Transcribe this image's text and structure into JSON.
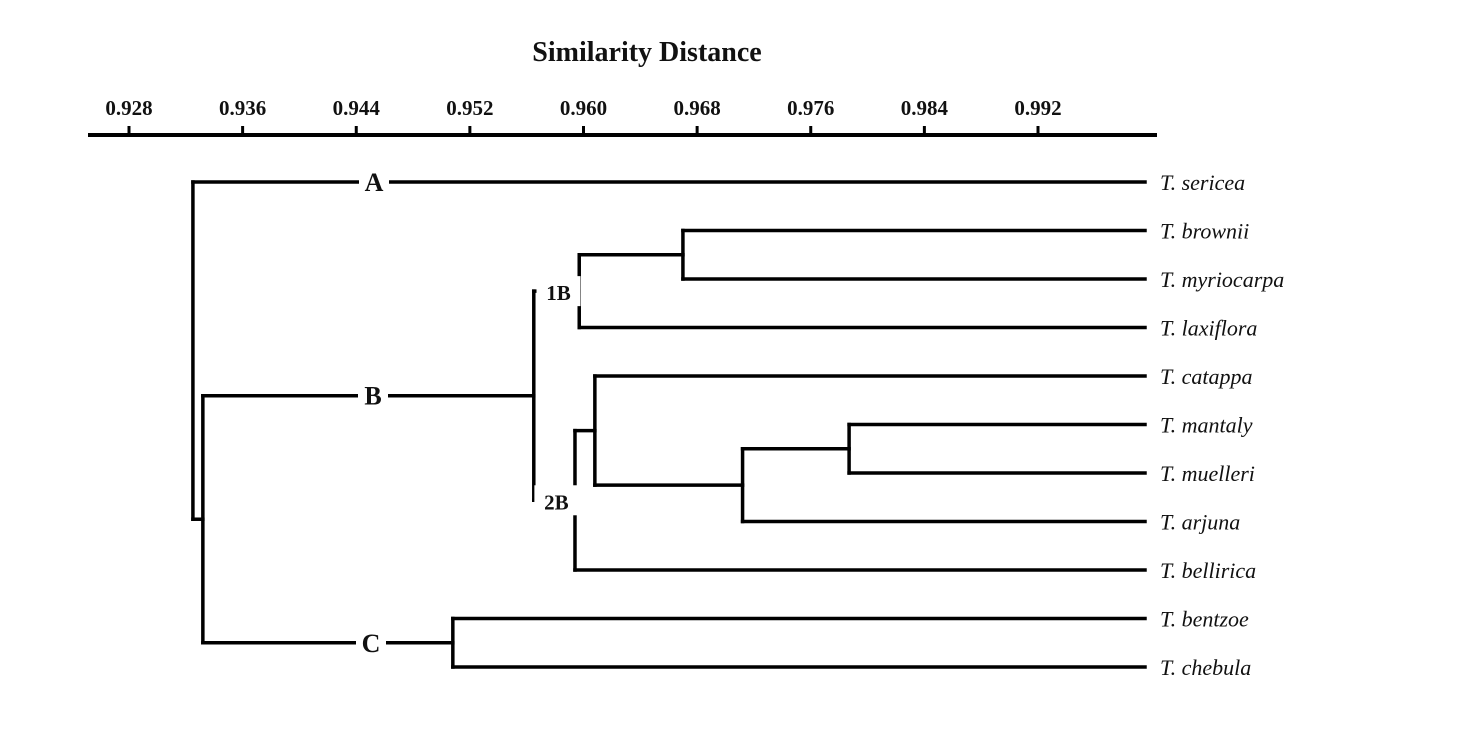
{
  "title": "Similarity Distance",
  "axis": {
    "ticks": [
      "0.928",
      "0.936",
      "0.944",
      "0.952",
      "0.960",
      "0.968",
      "0.976",
      "0.984",
      "0.992"
    ]
  },
  "leaves": [
    "T. sericea",
    "T. brownii",
    "T. myriocarpa",
    "T. laxiflora",
    "T. catappa",
    "T. mantaly",
    "T. muelleri",
    "T. arjuna",
    "T. bellirica",
    "T. bentzoe",
    "T. chebula"
  ],
  "clades": {
    "A": "A",
    "B": "B",
    "C": "C",
    "1B": "1B",
    "2B": "2B"
  },
  "tree": {
    "name": "root",
    "height": 0.9325,
    "children": [
      {
        "leaf": 0,
        "cluster": "A"
      },
      {
        "name": "B",
        "height": 0.9332,
        "children": [
          {
            "name": "B",
            "height": 0.9565,
            "children": [
              {
                "name": "1B",
                "height": 0.9597,
                "children": [
                  {
                    "height": 0.967,
                    "children": [
                      {
                        "leaf": 1
                      },
                      {
                        "leaf": 2
                      }
                    ]
                  },
                  {
                    "leaf": 3
                  }
                ]
              },
              {
                "name": "2B",
                "height": 0.9594,
                "children": [
                  {
                    "height": 0.9608,
                    "children": [
                      {
                        "leaf": 4
                      },
                      {
                        "height": 0.9712,
                        "children": [
                          {
                            "height": 0.9787,
                            "children": [
                              {
                                "leaf": 5
                              },
                              {
                                "leaf": 6
                              }
                            ]
                          },
                          {
                            "leaf": 7
                          }
                        ]
                      }
                    ]
                  },
                  {
                    "leaf": 8
                  }
                ]
              }
            ]
          },
          {
            "name": "C",
            "height": 0.9508,
            "children": [
              {
                "leaf": 9
              },
              {
                "leaf": 10
              }
            ]
          }
        ]
      }
    ]
  }
}
